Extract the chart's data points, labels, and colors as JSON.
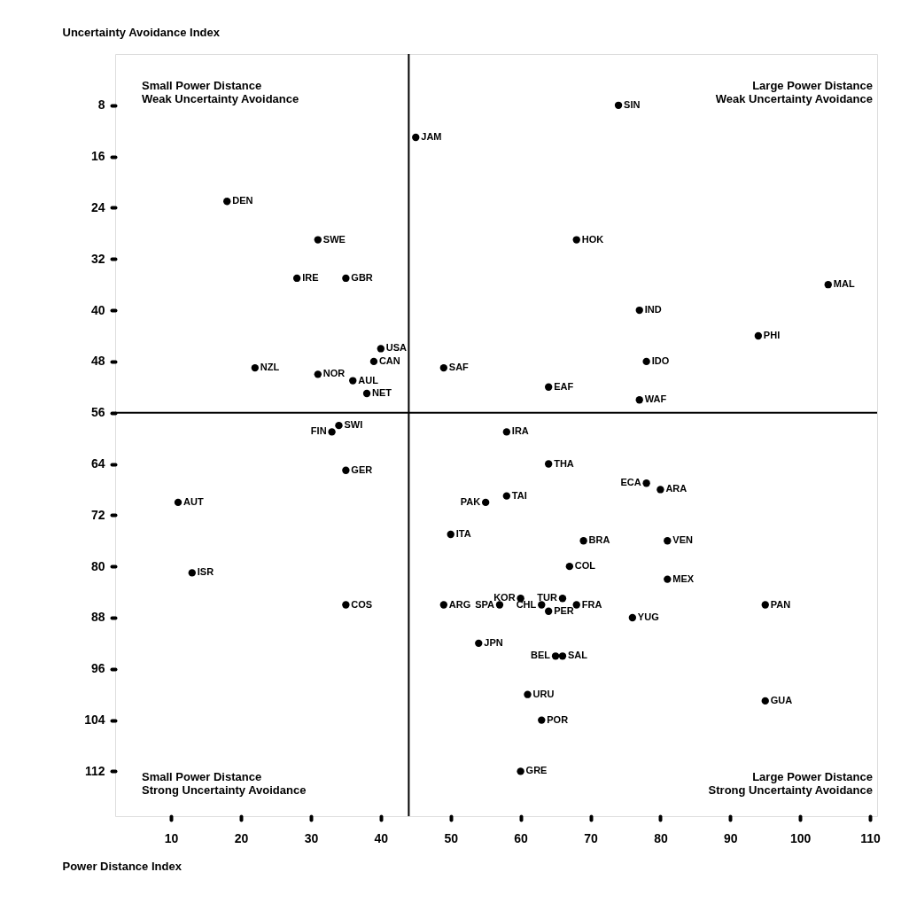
{
  "chart_data": {
    "type": "scatter",
    "xlabel": "Power Distance Index",
    "ylabel": "Uncertainty Avoidance Index",
    "xlim": [
      2,
      111
    ],
    "ylim": [
      119,
      0
    ],
    "xticks": [
      10,
      20,
      30,
      40,
      50,
      60,
      70,
      80,
      90,
      100,
      110
    ],
    "yticks": [
      8,
      16,
      24,
      32,
      40,
      48,
      56,
      64,
      72,
      80,
      88,
      96,
      104,
      112
    ],
    "marker": "circle",
    "x": [
      74,
      45,
      68,
      18,
      31,
      35,
      28,
      104,
      77,
      94,
      78,
      40,
      39,
      22,
      31,
      49,
      36,
      38,
      64,
      77,
      34,
      33,
      35,
      58,
      64,
      78,
      80,
      55,
      58,
      11,
      13,
      50,
      69,
      81,
      67,
      81,
      35,
      49,
      57,
      63,
      60,
      66,
      68,
      64,
      76,
      95,
      54,
      65,
      66,
      61,
      95,
      63,
      60
    ],
    "series": [
      {
        "color": "#000000",
        "values": [
          8,
          13,
          29,
          23,
          29,
          35,
          35,
          36,
          40,
          44,
          48,
          46,
          48,
          49,
          50,
          49,
          51,
          53,
          52,
          54,
          58,
          59,
          65,
          59,
          64,
          67,
          68,
          70,
          69,
          70,
          81,
          75,
          76,
          76,
          80,
          82,
          86,
          86,
          86,
          86,
          85,
          85,
          86,
          87,
          88,
          86,
          92,
          94,
          94,
          100,
          101,
          104,
          112
        ]
      }
    ],
    "ref_lines": [
      {
        "axis": "x",
        "value": 44,
        "color": "#000000"
      },
      {
        "axis": "y",
        "value": 56,
        "color": "#000000"
      }
    ],
    "annotations": [
      "Small Power Distance\nWeak Uncertainty Avoidance",
      "Large Power Distance\nWeak Uncertainty Avoidance",
      "Small Power Distance\nStrong Uncertainty Avoidance",
      "Large Power Distance\nStrong Uncertainty Avoidance",
      {
        "text": "SIN",
        "x": 74,
        "y": 8
      },
      {
        "text": "JAM",
        "x": 45,
        "y": 13
      },
      {
        "text": "HOK",
        "x": 68,
        "y": 29
      },
      {
        "text": "DEN",
        "x": 18,
        "y": 23
      },
      {
        "text": "SWE",
        "x": 31,
        "y": 29
      },
      {
        "text": "GBR",
        "x": 35,
        "y": 35
      },
      {
        "text": "IRE",
        "x": 28,
        "y": 35
      },
      {
        "text": "MAL",
        "x": 104,
        "y": 36
      },
      {
        "text": "IND",
        "x": 77,
        "y": 40
      },
      {
        "text": "PHI",
        "x": 94,
        "y": 44
      },
      {
        "text": "IDO",
        "x": 78,
        "y": 48
      },
      {
        "text": "USA",
        "x": 40,
        "y": 46
      },
      {
        "text": "CAN",
        "x": 39,
        "y": 48
      },
      {
        "text": "NZL",
        "x": 22,
        "y": 49
      },
      {
        "text": "NOR",
        "x": 31,
        "y": 50
      },
      {
        "text": "SAF",
        "x": 49,
        "y": 49
      },
      {
        "text": "AUL",
        "x": 36,
        "y": 51
      },
      {
        "text": "NET",
        "x": 38,
        "y": 53
      },
      {
        "text": "EAF",
        "x": 64,
        "y": 52
      },
      {
        "text": "WAF",
        "x": 77,
        "y": 54
      },
      {
        "text": "SWI",
        "x": 34,
        "y": 58
      },
      {
        "text": "FIN",
        "x": 33,
        "y": 59
      },
      {
        "text": "GER",
        "x": 35,
        "y": 65
      },
      {
        "text": "IRA",
        "x": 58,
        "y": 59
      },
      {
        "text": "THA",
        "x": 64,
        "y": 64
      },
      {
        "text": "ECA",
        "x": 78,
        "y": 67
      },
      {
        "text": "ARA",
        "x": 80,
        "y": 68
      },
      {
        "text": "PAK",
        "x": 55,
        "y": 70
      },
      {
        "text": "TAI",
        "x": 58,
        "y": 69
      },
      {
        "text": "AUT",
        "x": 11,
        "y": 70
      },
      {
        "text": "ISR",
        "x": 13,
        "y": 81
      },
      {
        "text": "ITA",
        "x": 50,
        "y": 75
      },
      {
        "text": "BRA",
        "x": 69,
        "y": 76
      },
      {
        "text": "VEN",
        "x": 81,
        "y": 76
      },
      {
        "text": "COL",
        "x": 67,
        "y": 80
      },
      {
        "text": "MEX",
        "x": 81,
        "y": 82
      },
      {
        "text": "COS",
        "x": 35,
        "y": 86
      },
      {
        "text": "ARG",
        "x": 49,
        "y": 86
      },
      {
        "text": "SPA",
        "x": 57,
        "y": 86
      },
      {
        "text": "CHL",
        "x": 63,
        "y": 86
      },
      {
        "text": "KOR",
        "x": 60,
        "y": 85
      },
      {
        "text": "TUR",
        "x": 66,
        "y": 85
      },
      {
        "text": "FRA",
        "x": 68,
        "y": 86
      },
      {
        "text": "PER",
        "x": 64,
        "y": 87
      },
      {
        "text": "YUG",
        "x": 76,
        "y": 88
      },
      {
        "text": "PAN",
        "x": 95,
        "y": 86
      },
      {
        "text": "JPN",
        "x": 54,
        "y": 92
      },
      {
        "text": "BEL",
        "x": 65,
        "y": 94
      },
      {
        "text": "SAL",
        "x": 66,
        "y": 94
      },
      {
        "text": "URU",
        "x": 61,
        "y": 100
      },
      {
        "text": "GUA",
        "x": 95,
        "y": 101
      },
      {
        "text": "POR",
        "x": 63,
        "y": 104
      },
      {
        "text": "GRE",
        "x": 60,
        "y": 112
      }
    ]
  }
}
